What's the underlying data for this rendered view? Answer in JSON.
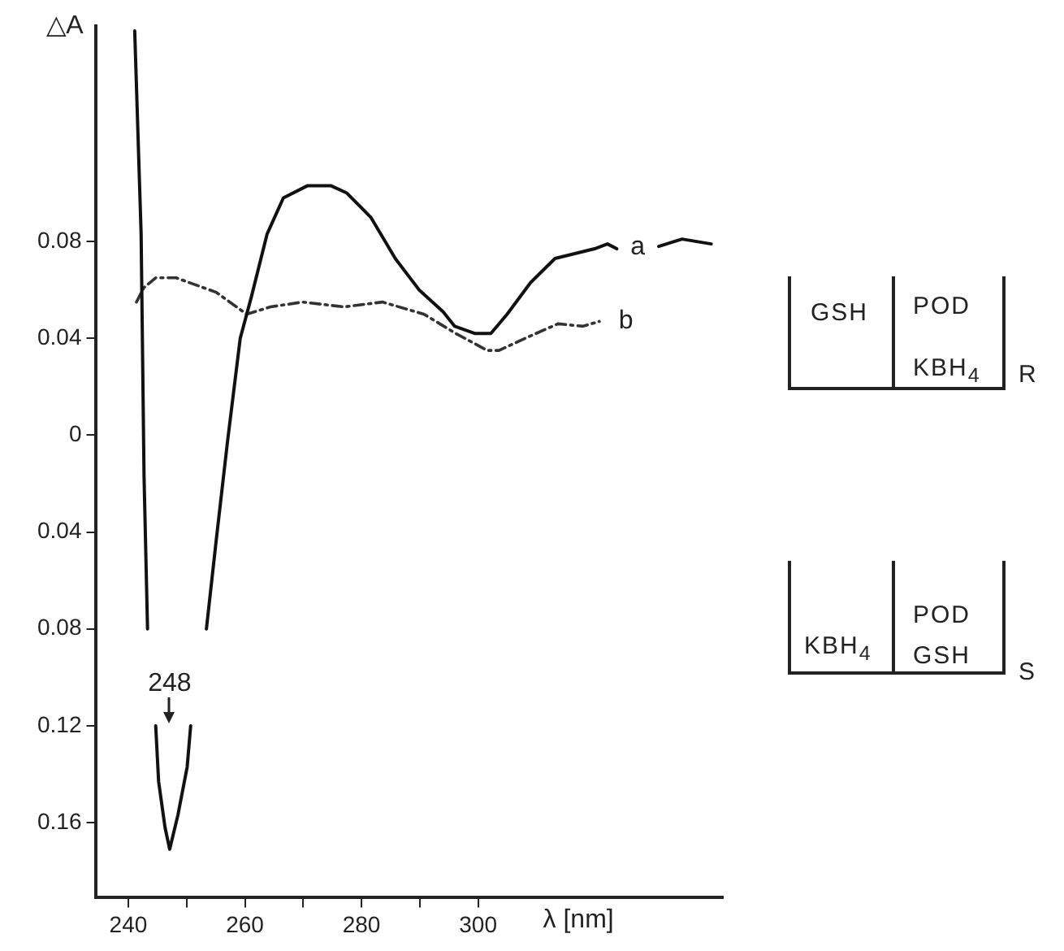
{
  "chart_data": {
    "type": "line",
    "xlabel": "λ [nm]",
    "ylabel": "△A",
    "xlim": [
      234.5,
      342
    ],
    "xticks": [
      240,
      {
        "value": 250,
        "label": null
      },
      260,
      {
        "value": 270,
        "label": null
      },
      280,
      {
        "value": 290,
        "label": null
      },
      300
    ],
    "ylim": [
      -0.191,
      0.169
    ],
    "yticks": [
      {
        "value": -0.16,
        "label": "0.16"
      },
      {
        "value": -0.12,
        "label": "0.12"
      },
      {
        "value": -0.08,
        "label": "0.08"
      },
      {
        "value": -0.04,
        "label": "0.04"
      },
      0,
      0.04,
      0.08
    ],
    "grid": false,
    "legend": false,
    "marker": "none",
    "series": [
      {
        "name": "a",
        "color": "#111111",
        "line_style": "solid",
        "x": [
          241.1,
          242.2,
          242.7,
          243.3,
          243.4,
          244.7,
          245.2,
          246.3,
          247.1,
          248.5,
          250.1,
          250.7,
          252,
          253.4,
          255.1,
          257,
          259.2,
          261.1,
          263.8,
          266.6,
          270.7,
          274.8,
          277.5,
          281.6,
          285.8,
          289.9,
          294,
          296,
          299.5,
          302.2,
          305,
          309,
          313.2,
          320,
          322.2,
          323.8,
          324,
          331,
          335,
          340
        ],
        "values": [
          0.167,
          0.083,
          -0.017,
          -0.08,
          null,
          -0.12,
          -0.143,
          -0.162,
          -0.171,
          -0.157,
          -0.137,
          -0.12,
          null,
          -0.08,
          -0.043,
          -0.003,
          0.04,
          0.057,
          0.083,
          0.098,
          0.103,
          0.103,
          0.1,
          0.09,
          0.073,
          0.06,
          0.051,
          0.045,
          0.042,
          0.042,
          0.05,
          0.063,
          0.073,
          0.077,
          0.079,
          0.077,
          null,
          0.078,
          0.081,
          0.079
        ]
      },
      {
        "name": "b",
        "color": "#333333",
        "line_style": "dashed",
        "x": [
          241.4,
          242.7,
          244.7,
          248.2,
          255.1,
          260.3,
          264.4,
          269.9,
          277,
          283.6,
          290.7,
          296.2,
          301.6,
          303.6,
          309,
          313.7,
          318,
          320.8
        ],
        "values": [
          0.055,
          0.061,
          0.065,
          0.065,
          0.059,
          0.05,
          0.053,
          0.055,
          0.053,
          0.055,
          0.05,
          0.042,
          0.035,
          0.035,
          0.041,
          0.046,
          0.045,
          0.047
        ]
      }
    ],
    "annotations": [
      "248",
      "GSH",
      "POD",
      "KBH$_{4}$",
      "R",
      "KBH$_{4}$",
      "POD",
      "GSH",
      "S"
    ]
  }
}
